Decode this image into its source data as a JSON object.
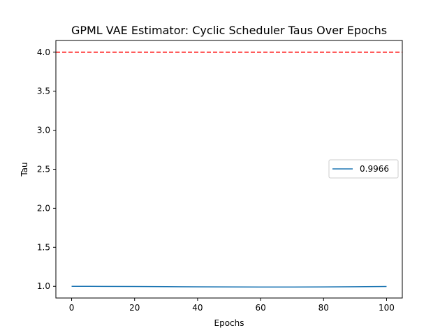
{
  "chart_data": {
    "type": "line",
    "title": "GPML VAE Estimator: Cyclic Scheduler Taus Over Epochs",
    "xlabel": "Epochs",
    "ylabel": "Tau",
    "xlim": [
      -5,
      105
    ],
    "ylim": [
      0.85,
      4.15
    ],
    "xticks": [
      0,
      20,
      40,
      60,
      80,
      100
    ],
    "yticks": [
      1.0,
      1.5,
      2.0,
      2.5,
      3.0,
      3.5,
      4.0
    ],
    "xtick_labels": [
      "0",
      "20",
      "40",
      "60",
      "80",
      "100"
    ],
    "ytick_labels": [
      "1.0",
      "1.5",
      "2.0",
      "2.5",
      "3.0",
      "3.5",
      "4.0"
    ],
    "grid": false,
    "legend_position": "center-right",
    "series": [
      {
        "name": "0.9966",
        "color": "#1f77b4",
        "x": [
          0,
          10,
          20,
          30,
          40,
          50,
          60,
          70,
          80,
          90,
          100
        ],
        "y": [
          1.0,
          0.999,
          0.997,
          0.995,
          0.993,
          0.992,
          0.991,
          0.991,
          0.992,
          0.994,
          0.997
        ]
      }
    ],
    "reference_lines": [
      {
        "orientation": "horizontal",
        "y": 4.0,
        "color": "#ff0000",
        "style": "dashed"
      }
    ]
  }
}
